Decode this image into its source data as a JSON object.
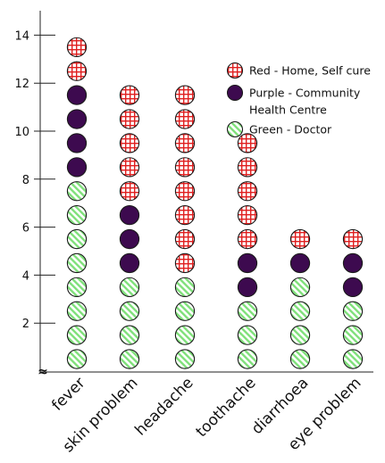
{
  "chart_data": {
    "type": "bar",
    "style": "stacked-dot-pictogram",
    "categories": [
      "fever",
      "skin problem",
      "headache",
      "toothache",
      "diarrhoea",
      "eye problem"
    ],
    "series": [
      {
        "name": "Green - Doctor",
        "key": "green",
        "values": [
          8,
          4,
          4,
          3,
          4,
          3
        ],
        "color": "#7fe07a",
        "pattern": "diagonal-hatch"
      },
      {
        "name": "Purple - Community Health Centre",
        "key": "purple",
        "values": [
          4,
          3,
          0,
          2,
          1,
          2
        ],
        "color": "#3d0a4f",
        "pattern": "solid"
      },
      {
        "name": "Red - Home, Self cure",
        "key": "red",
        "values": [
          2,
          5,
          8,
          5,
          1,
          1
        ],
        "color": "#e02020",
        "pattern": "grid"
      }
    ],
    "yaxis": {
      "min": 0,
      "max": 14,
      "ticks": [
        2,
        4,
        6,
        8,
        10,
        12,
        14
      ]
    },
    "axis_break_symbol": "≈",
    "legend": {
      "placement": "top-right",
      "entries": [
        {
          "key": "red",
          "lines": [
            "Red - Home, Self cure"
          ]
        },
        {
          "key": "purple",
          "lines": [
            "Purple - Community",
            "Health Centre"
          ]
        },
        {
          "key": "green",
          "lines": [
            "Green - Doctor"
          ]
        }
      ]
    },
    "grid": false
  }
}
